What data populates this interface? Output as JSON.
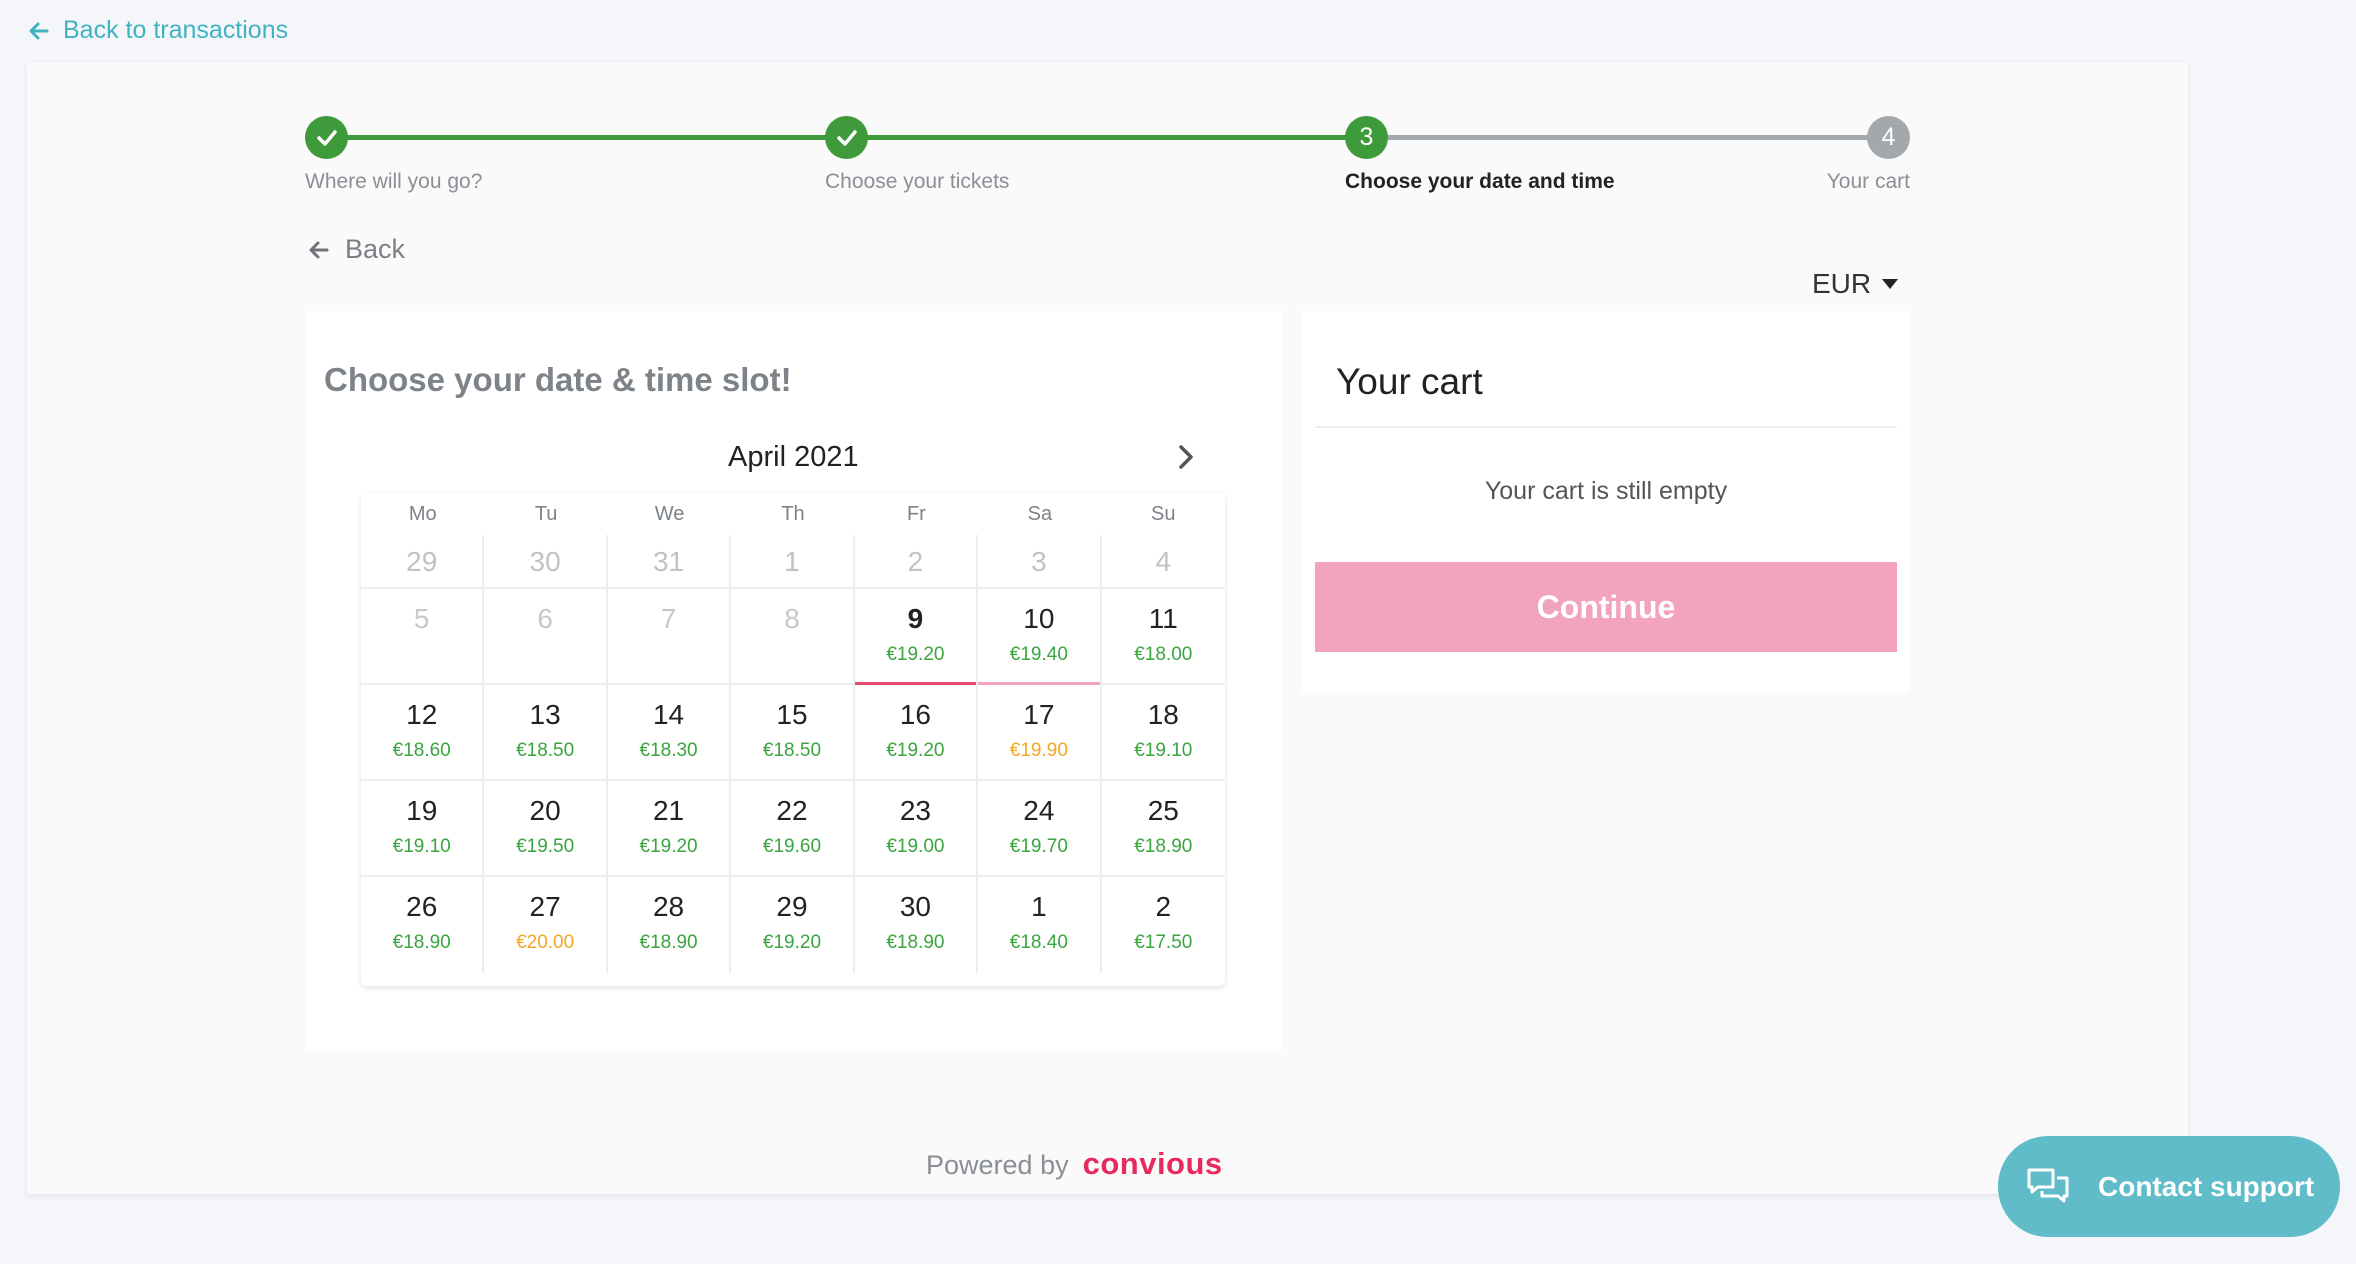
{
  "nav": {
    "back_to_transactions": "Back to transactions",
    "back": "Back"
  },
  "stepper": {
    "steps": [
      {
        "label": "Where will you go?",
        "state": "done"
      },
      {
        "label": "Choose your tickets",
        "state": "done"
      },
      {
        "label": "Choose your date and time",
        "number": "3",
        "state": "active"
      },
      {
        "label": "Your cart",
        "number": "4",
        "state": "upcoming"
      }
    ]
  },
  "currency": {
    "selected": "EUR"
  },
  "calendar": {
    "title": "Choose your date & time slot!",
    "month": "April 2021",
    "weekdays": [
      "Mo",
      "Tu",
      "We",
      "Th",
      "Fr",
      "Sa",
      "Su"
    ],
    "first_week": [
      "29",
      "30",
      "31",
      "1",
      "2",
      "3",
      "4"
    ],
    "weeks": [
      [
        {
          "d": "5",
          "p": ""
        },
        {
          "d": "6",
          "p": ""
        },
        {
          "d": "7",
          "p": ""
        },
        {
          "d": "8",
          "p": ""
        },
        {
          "d": "9",
          "p": "€19.20"
        },
        {
          "d": "10",
          "p": "€19.40"
        },
        {
          "d": "11",
          "p": "€18.00"
        }
      ],
      [
        {
          "d": "12",
          "p": "€18.60"
        },
        {
          "d": "13",
          "p": "€18.50"
        },
        {
          "d": "14",
          "p": "€18.30"
        },
        {
          "d": "15",
          "p": "€18.50"
        },
        {
          "d": "16",
          "p": "€19.20"
        },
        {
          "d": "17",
          "p": "€19.90"
        },
        {
          "d": "18",
          "p": "€19.10"
        }
      ],
      [
        {
          "d": "19",
          "p": "€19.10"
        },
        {
          "d": "20",
          "p": "€19.50"
        },
        {
          "d": "21",
          "p": "€19.20"
        },
        {
          "d": "22",
          "p": "€19.60"
        },
        {
          "d": "23",
          "p": "€19.00"
        },
        {
          "d": "24",
          "p": "€19.70"
        },
        {
          "d": "25",
          "p": "€18.90"
        }
      ],
      [
        {
          "d": "26",
          "p": "€18.90"
        },
        {
          "d": "27",
          "p": "€20.00"
        },
        {
          "d": "28",
          "p": "€18.90"
        },
        {
          "d": "29",
          "p": "€19.20"
        },
        {
          "d": "30",
          "p": "€18.90"
        },
        {
          "d": "1",
          "p": "€18.40"
        },
        {
          "d": "2",
          "p": "€17.50"
        }
      ]
    ],
    "colors": {
      "price_normal": "#3aa53e",
      "price_high": "#f5a623",
      "today_marker": "#e74c6f"
    }
  },
  "cart": {
    "title": "Your cart",
    "empty_message": "Your cart is still empty",
    "continue_label": "Continue"
  },
  "footer": {
    "powered_by": "Powered by",
    "brand": "convious"
  },
  "support": {
    "label": "Contact support"
  },
  "colors": {
    "accent": "#3fb3c1",
    "step_done": "#3e9a3a",
    "step_upcoming": "#a3a8ad",
    "continue_button": "#f2a4bd",
    "brand": "#e8295c"
  }
}
